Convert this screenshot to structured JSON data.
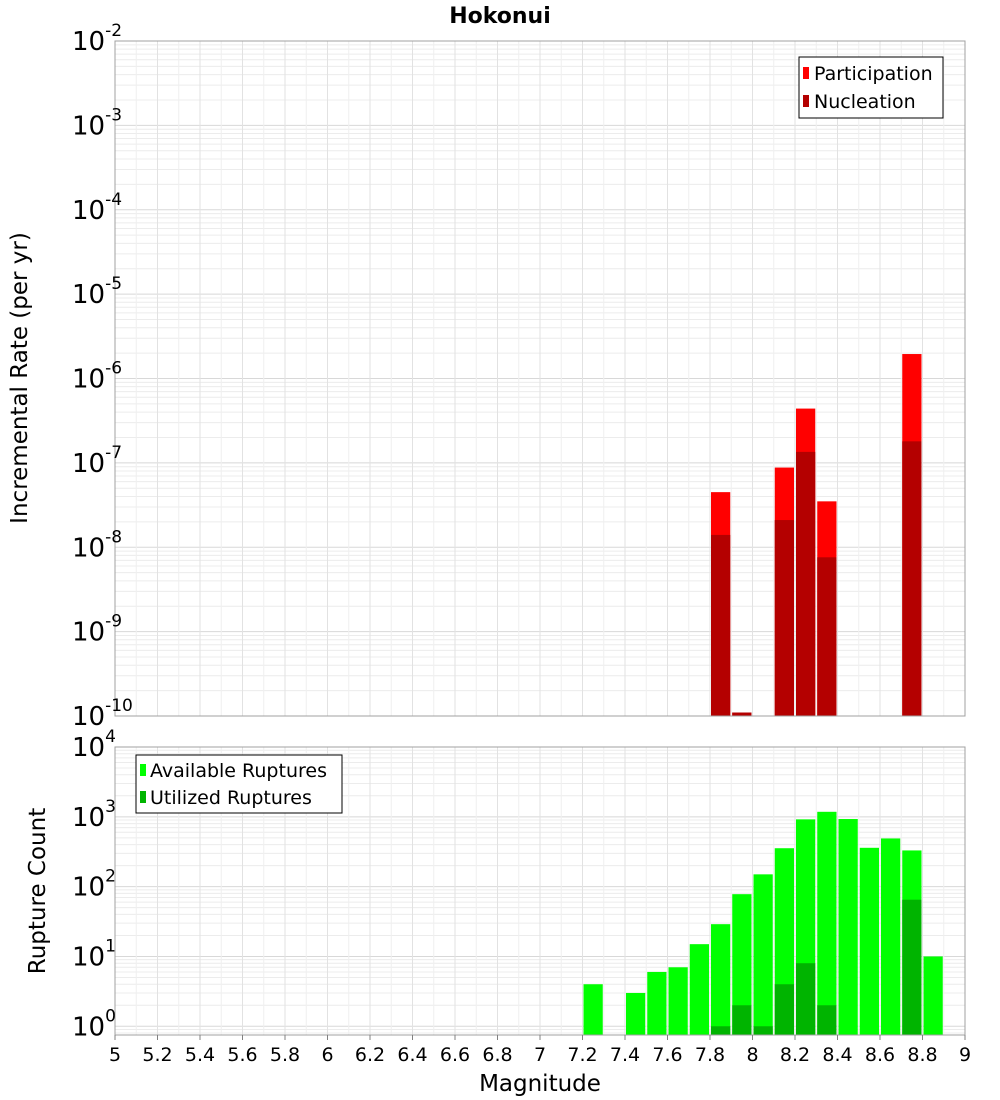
{
  "chart_data": [
    {
      "type": "bar",
      "title": "Hokonui",
      "xlabel": "",
      "ylabel": "Incremental Rate (per yr)",
      "yscale": "log",
      "ylim": [
        1e-10,
        0.01
      ],
      "xlim": [
        5,
        9
      ],
      "grid": true,
      "legend_position": "top-right",
      "bar_width": 0.1,
      "x": [
        7.85,
        7.95,
        8.15,
        8.25,
        8.35,
        8.75
      ],
      "series": [
        {
          "name": "Participation",
          "color": "#ff0000",
          "values": [
            4.5e-08,
            1.1e-10,
            8.8e-08,
            4.4e-07,
            3.5e-08,
            1.95e-06
          ]
        },
        {
          "name": "Nucleation",
          "color": "#b40000",
          "values": [
            1.4e-08,
            1.1e-10,
            2.1e-08,
            1.35e-07,
            7.6e-09,
            1.8e-07
          ]
        }
      ],
      "y_ticks": [
        {
          "base": "10",
          "exp": "-10",
          "value": 1e-10
        },
        {
          "base": "10",
          "exp": "-9",
          "value": 1e-09
        },
        {
          "base": "10",
          "exp": "-8",
          "value": 1e-08
        },
        {
          "base": "10",
          "exp": "-7",
          "value": 1e-07
        },
        {
          "base": "10",
          "exp": "-6",
          "value": 1e-06
        },
        {
          "base": "10",
          "exp": "-5",
          "value": 1e-05
        },
        {
          "base": "10",
          "exp": "-4",
          "value": 0.0001
        },
        {
          "base": "10",
          "exp": "-3",
          "value": 0.001
        },
        {
          "base": "10",
          "exp": "-2",
          "value": 0.01
        }
      ]
    },
    {
      "type": "bar",
      "title": "",
      "xlabel": "Magnitude",
      "ylabel": "Rupture Count",
      "yscale": "log",
      "ylim": [
        0.75,
        10000
      ],
      "xlim": [
        5,
        9
      ],
      "grid": true,
      "legend_position": "top-left",
      "bar_width": 0.1,
      "x": [
        7.25,
        7.45,
        7.55,
        7.65,
        7.75,
        7.85,
        7.95,
        8.05,
        8.15,
        8.25,
        8.35,
        8.45,
        8.55,
        8.65,
        8.75,
        8.85
      ],
      "series": [
        {
          "name": "Available Ruptures",
          "color": "#00ff00",
          "values": [
            4,
            3,
            6,
            7,
            15,
            29,
            78,
            150,
            355,
            920,
            1180,
            930,
            360,
            490,
            330,
            10
          ]
        },
        {
          "name": "Utilized Ruptures",
          "color": "#00b400",
          "values": [
            null,
            null,
            null,
            null,
            null,
            1,
            2,
            1,
            4,
            8,
            2,
            null,
            null,
            null,
            65,
            null
          ]
        }
      ],
      "y_ticks": [
        {
          "base": "10",
          "exp": "0",
          "value": 1
        },
        {
          "base": "10",
          "exp": "1",
          "value": 10
        },
        {
          "base": "10",
          "exp": "2",
          "value": 100
        },
        {
          "base": "10",
          "exp": "3",
          "value": 1000
        },
        {
          "base": "10",
          "exp": "4",
          "value": 10000
        }
      ],
      "x_ticks": [
        "5",
        "5.2",
        "5.4",
        "5.6",
        "5.8",
        "6",
        "6.2",
        "6.4",
        "6.6",
        "6.8",
        "7",
        "7.2",
        "7.4",
        "7.6",
        "7.8",
        "8",
        "8.2",
        "8.4",
        "8.6",
        "8.8",
        "9"
      ]
    }
  ]
}
